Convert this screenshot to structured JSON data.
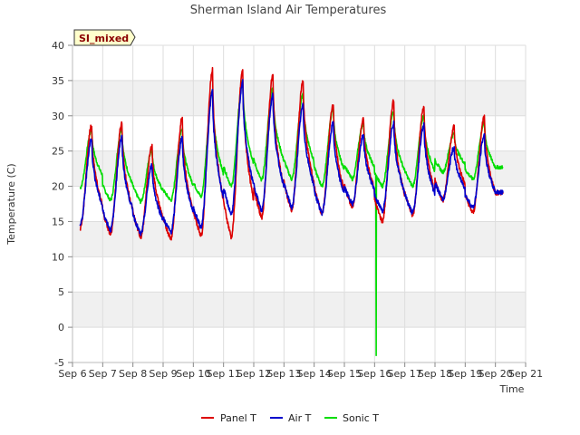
{
  "chart_data": {
    "type": "line",
    "title": "Sherman Island Air Temperatures",
    "xlabel": "Time",
    "ylabel": "Temperature (C)",
    "ylim": [
      -5,
      40
    ],
    "yticks": [
      -5,
      0,
      5,
      10,
      15,
      20,
      25,
      30,
      35,
      40
    ],
    "x_tick_labels": [
      "Sep 6",
      "Sep 7",
      "Sep 8",
      "Sep 9",
      "Sep 10",
      "Sep 11",
      "Sep 12",
      "Sep 13",
      "Sep 14",
      "Sep 15",
      "Sep 16",
      "Sep 17",
      "Sep 18",
      "Sep 19",
      "Sep 20",
      "Sep 21"
    ],
    "xlim_days": [
      0,
      15
    ],
    "badge": "SI_mixed",
    "day_min_max": {
      "note": "approximate daily (min, max) per day index 0..13 for each series",
      "Panel T": [
        [
          14,
          28.8
        ],
        [
          13.2,
          29
        ],
        [
          12.8,
          25.8
        ],
        [
          12.6,
          29.8
        ],
        [
          13,
          36.5
        ],
        [
          12.8,
          36.5
        ],
        [
          15.5,
          35.8
        ],
        [
          16.5,
          35
        ],
        [
          16,
          31.8
        ],
        [
          17,
          29.5
        ],
        [
          15,
          32.2
        ],
        [
          15.8,
          31.4
        ],
        [
          18,
          28.5
        ],
        [
          16.2,
          29.8
        ]
      ],
      "Air T": [
        [
          14.5,
          26.8
        ],
        [
          13.8,
          27
        ],
        [
          13.2,
          23
        ],
        [
          13.5,
          27
        ],
        [
          14.2,
          33.5
        ],
        [
          16,
          34.8
        ],
        [
          16.5,
          33
        ],
        [
          17,
          31.5
        ],
        [
          16.2,
          29
        ],
        [
          17.5,
          27.2
        ],
        [
          16.5,
          29
        ],
        [
          16.2,
          28.8
        ],
        [
          18.2,
          25.5
        ],
        [
          17,
          27.2
        ]
      ],
      "Sonic T": [
        [
          19.8,
          28
        ],
        [
          18,
          28.2
        ],
        [
          17.8,
          25.2
        ],
        [
          18,
          28.2
        ],
        [
          18.5,
          33.5
        ],
        [
          20,
          35
        ],
        [
          20.8,
          34
        ],
        [
          21,
          33
        ],
        [
          20,
          31
        ],
        [
          21,
          29
        ],
        [
          20,
          30.5
        ],
        [
          20,
          30
        ],
        [
          22,
          27.5
        ],
        [
          21,
          29
        ]
      ]
    },
    "series": [
      {
        "name": "Panel T",
        "color": "#dd0000"
      },
      {
        "name": "Air T",
        "color": "#0000cc"
      },
      {
        "name": "Sonic T",
        "color": "#00dd00"
      }
    ],
    "anomaly": {
      "series": "Sonic T",
      "day": 10.05,
      "value": -4
    }
  }
}
